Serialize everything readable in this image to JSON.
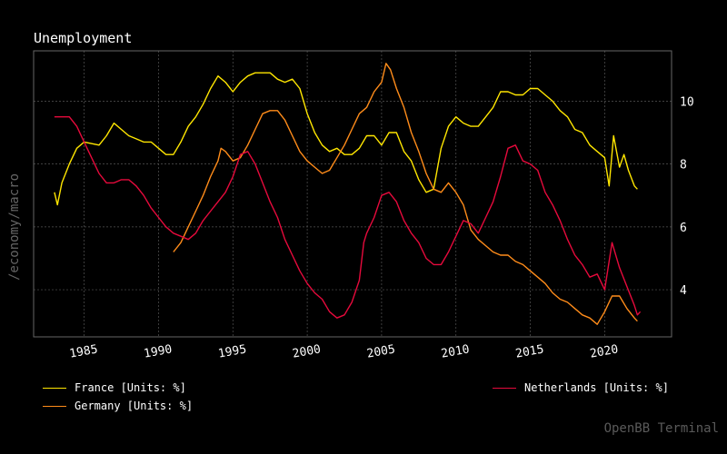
{
  "header": {
    "title": "Unemployment"
  },
  "side_label": "/economy/macro",
  "watermark": "OpenBB Terminal",
  "legend": {
    "france": "France [Units: %]",
    "germany": "Germany [Units: %]",
    "netherlands": "Netherlands [Units: %]"
  },
  "colors": {
    "background": "#000000",
    "grid": "#555555",
    "frame": "#666666",
    "france": "#ffe600",
    "germany": "#ff8c1a",
    "netherlands": "#e60a3c"
  },
  "chart_data": {
    "type": "line",
    "title": "Unemployment",
    "xlabel": "",
    "ylabel": "",
    "xlim": [
      1981.6,
      2024.5
    ],
    "ylim": [
      2.5,
      11.6
    ],
    "x_ticks": [
      1985,
      1990,
      1995,
      2000,
      2005,
      2010,
      2015,
      2020
    ],
    "y_ticks": [
      4,
      6,
      8,
      10
    ],
    "y_axis_side": "right",
    "grid": true,
    "legend_position": "bottom",
    "series": [
      {
        "name": "France [Units: %]",
        "color": "#ffe600",
        "points": [
          [
            1983.0,
            7.1
          ],
          [
            1983.2,
            6.7
          ],
          [
            1983.5,
            7.4
          ],
          [
            1984.0,
            8.0
          ],
          [
            1984.5,
            8.5
          ],
          [
            1985.0,
            8.7
          ],
          [
            1986.0,
            8.6
          ],
          [
            1986.5,
            8.9
          ],
          [
            1987.0,
            9.3
          ],
          [
            1987.5,
            9.1
          ],
          [
            1988.0,
            8.9
          ],
          [
            1988.5,
            8.8
          ],
          [
            1989.0,
            8.7
          ],
          [
            1989.5,
            8.7
          ],
          [
            1990.0,
            8.5
          ],
          [
            1990.5,
            8.3
          ],
          [
            1991.0,
            8.3
          ],
          [
            1991.5,
            8.7
          ],
          [
            1992.0,
            9.2
          ],
          [
            1992.5,
            9.5
          ],
          [
            1993.0,
            9.9
          ],
          [
            1993.5,
            10.4
          ],
          [
            1994.0,
            10.8
          ],
          [
            1994.5,
            10.6
          ],
          [
            1995.0,
            10.3
          ],
          [
            1995.5,
            10.6
          ],
          [
            1996.0,
            10.8
          ],
          [
            1996.5,
            10.9
          ],
          [
            1997.0,
            10.9
          ],
          [
            1997.5,
            10.9
          ],
          [
            1998.0,
            10.7
          ],
          [
            1998.5,
            10.6
          ],
          [
            1999.0,
            10.7
          ],
          [
            1999.5,
            10.4
          ],
          [
            2000.0,
            9.6
          ],
          [
            2000.5,
            9.0
          ],
          [
            2001.0,
            8.6
          ],
          [
            2001.5,
            8.4
          ],
          [
            2002.0,
            8.5
          ],
          [
            2002.5,
            8.3
          ],
          [
            2003.0,
            8.3
          ],
          [
            2003.5,
            8.5
          ],
          [
            2004.0,
            8.9
          ],
          [
            2004.5,
            8.9
          ],
          [
            2005.0,
            8.6
          ],
          [
            2005.5,
            9.0
          ],
          [
            2006.0,
            9.0
          ],
          [
            2006.5,
            8.4
          ],
          [
            2007.0,
            8.1
          ],
          [
            2007.5,
            7.5
          ],
          [
            2008.0,
            7.1
          ],
          [
            2008.5,
            7.2
          ],
          [
            2009.0,
            8.5
          ],
          [
            2009.5,
            9.2
          ],
          [
            2010.0,
            9.5
          ],
          [
            2010.5,
            9.3
          ],
          [
            2011.0,
            9.2
          ],
          [
            2011.5,
            9.2
          ],
          [
            2012.0,
            9.5
          ],
          [
            2012.5,
            9.8
          ],
          [
            2013.0,
            10.3
          ],
          [
            2013.5,
            10.3
          ],
          [
            2014.0,
            10.2
          ],
          [
            2014.5,
            10.2
          ],
          [
            2015.0,
            10.4
          ],
          [
            2015.5,
            10.4
          ],
          [
            2016.0,
            10.2
          ],
          [
            2016.5,
            10.0
          ],
          [
            2017.0,
            9.7
          ],
          [
            2017.5,
            9.5
          ],
          [
            2018.0,
            9.1
          ],
          [
            2018.5,
            9.0
          ],
          [
            2019.0,
            8.6
          ],
          [
            2019.5,
            8.4
          ],
          [
            2020.0,
            8.2
          ],
          [
            2020.3,
            7.3
          ],
          [
            2020.6,
            8.9
          ],
          [
            2021.0,
            7.9
          ],
          [
            2021.3,
            8.3
          ],
          [
            2021.6,
            7.8
          ],
          [
            2022.0,
            7.3
          ],
          [
            2022.2,
            7.2
          ]
        ]
      },
      {
        "name": "Germany [Units: %]",
        "color": "#ff8c1a",
        "points": [
          [
            1991.0,
            5.2
          ],
          [
            1991.5,
            5.5
          ],
          [
            1992.0,
            6.0
          ],
          [
            1992.5,
            6.5
          ],
          [
            1993.0,
            7.0
          ],
          [
            1993.5,
            7.6
          ],
          [
            1994.0,
            8.1
          ],
          [
            1994.2,
            8.5
          ],
          [
            1994.5,
            8.4
          ],
          [
            1995.0,
            8.1
          ],
          [
            1995.5,
            8.2
          ],
          [
            1996.0,
            8.6
          ],
          [
            1996.5,
            9.1
          ],
          [
            1997.0,
            9.6
          ],
          [
            1997.5,
            9.7
          ],
          [
            1998.0,
            9.7
          ],
          [
            1998.5,
            9.4
          ],
          [
            1999.0,
            8.9
          ],
          [
            1999.5,
            8.4
          ],
          [
            2000.0,
            8.1
          ],
          [
            2000.5,
            7.9
          ],
          [
            2001.0,
            7.7
          ],
          [
            2001.5,
            7.8
          ],
          [
            2002.0,
            8.2
          ],
          [
            2002.5,
            8.6
          ],
          [
            2003.0,
            9.1
          ],
          [
            2003.5,
            9.6
          ],
          [
            2004.0,
            9.8
          ],
          [
            2004.5,
            10.3
          ],
          [
            2005.0,
            10.6
          ],
          [
            2005.3,
            11.2
          ],
          [
            2005.6,
            11.0
          ],
          [
            2006.0,
            10.4
          ],
          [
            2006.5,
            9.8
          ],
          [
            2007.0,
            9.0
          ],
          [
            2007.5,
            8.4
          ],
          [
            2008.0,
            7.7
          ],
          [
            2008.5,
            7.2
          ],
          [
            2009.0,
            7.1
          ],
          [
            2009.5,
            7.4
          ],
          [
            2010.0,
            7.1
          ],
          [
            2010.5,
            6.7
          ],
          [
            2011.0,
            5.9
          ],
          [
            2011.5,
            5.6
          ],
          [
            2012.0,
            5.4
          ],
          [
            2012.5,
            5.2
          ],
          [
            2013.0,
            5.1
          ],
          [
            2013.5,
            5.1
          ],
          [
            2014.0,
            4.9
          ],
          [
            2014.5,
            4.8
          ],
          [
            2015.0,
            4.6
          ],
          [
            2015.5,
            4.4
          ],
          [
            2016.0,
            4.2
          ],
          [
            2016.5,
            3.9
          ],
          [
            2017.0,
            3.7
          ],
          [
            2017.5,
            3.6
          ],
          [
            2018.0,
            3.4
          ],
          [
            2018.5,
            3.2
          ],
          [
            2019.0,
            3.1
          ],
          [
            2019.5,
            2.9
          ],
          [
            2020.0,
            3.3
          ],
          [
            2020.5,
            3.8
          ],
          [
            2021.0,
            3.8
          ],
          [
            2021.5,
            3.4
          ],
          [
            2022.0,
            3.1
          ],
          [
            2022.2,
            3.0
          ]
        ]
      },
      {
        "name": "Netherlands [Units: %]",
        "color": "#e60a3c",
        "points": [
          [
            1983.0,
            9.5
          ],
          [
            1983.5,
            9.5
          ],
          [
            1984.0,
            9.5
          ],
          [
            1984.5,
            9.2
          ],
          [
            1985.0,
            8.7
          ],
          [
            1985.5,
            8.2
          ],
          [
            1986.0,
            7.7
          ],
          [
            1986.5,
            7.4
          ],
          [
            1987.0,
            7.4
          ],
          [
            1987.5,
            7.5
          ],
          [
            1988.0,
            7.5
          ],
          [
            1988.5,
            7.3
          ],
          [
            1989.0,
            7.0
          ],
          [
            1989.5,
            6.6
          ],
          [
            1990.0,
            6.3
          ],
          [
            1990.5,
            6.0
          ],
          [
            1991.0,
            5.8
          ],
          [
            1991.5,
            5.7
          ],
          [
            1992.0,
            5.6
          ],
          [
            1992.5,
            5.8
          ],
          [
            1993.0,
            6.2
          ],
          [
            1993.5,
            6.5
          ],
          [
            1994.0,
            6.8
          ],
          [
            1994.5,
            7.1
          ],
          [
            1995.0,
            7.6
          ],
          [
            1995.5,
            8.3
          ],
          [
            1996.0,
            8.4
          ],
          [
            1996.5,
            8.0
          ],
          [
            1997.0,
            7.4
          ],
          [
            1997.5,
            6.8
          ],
          [
            1998.0,
            6.3
          ],
          [
            1998.5,
            5.6
          ],
          [
            1999.0,
            5.1
          ],
          [
            1999.5,
            4.6
          ],
          [
            2000.0,
            4.2
          ],
          [
            2000.5,
            3.9
          ],
          [
            2001.0,
            3.7
          ],
          [
            2001.5,
            3.3
          ],
          [
            2002.0,
            3.1
          ],
          [
            2002.5,
            3.2
          ],
          [
            2003.0,
            3.6
          ],
          [
            2003.5,
            4.3
          ],
          [
            2003.8,
            5.5
          ],
          [
            2004.0,
            5.8
          ],
          [
            2004.5,
            6.3
          ],
          [
            2005.0,
            7.0
          ],
          [
            2005.5,
            7.1
          ],
          [
            2006.0,
            6.8
          ],
          [
            2006.5,
            6.2
          ],
          [
            2007.0,
            5.8
          ],
          [
            2007.5,
            5.5
          ],
          [
            2008.0,
            5.0
          ],
          [
            2008.5,
            4.8
          ],
          [
            2009.0,
            4.8
          ],
          [
            2009.5,
            5.2
          ],
          [
            2010.0,
            5.7
          ],
          [
            2010.5,
            6.2
          ],
          [
            2011.0,
            6.1
          ],
          [
            2011.5,
            5.8
          ],
          [
            2012.0,
            6.3
          ],
          [
            2012.5,
            6.8
          ],
          [
            2013.0,
            7.6
          ],
          [
            2013.5,
            8.5
          ],
          [
            2014.0,
            8.6
          ],
          [
            2014.5,
            8.1
          ],
          [
            2015.0,
            8.0
          ],
          [
            2015.5,
            7.8
          ],
          [
            2016.0,
            7.1
          ],
          [
            2016.5,
            6.7
          ],
          [
            2017.0,
            6.2
          ],
          [
            2017.5,
            5.6
          ],
          [
            2018.0,
            5.1
          ],
          [
            2018.5,
            4.8
          ],
          [
            2019.0,
            4.4
          ],
          [
            2019.5,
            4.5
          ],
          [
            2020.0,
            4.0
          ],
          [
            2020.5,
            5.5
          ],
          [
            2021.0,
            4.7
          ],
          [
            2021.5,
            4.1
          ],
          [
            2022.0,
            3.5
          ],
          [
            2022.2,
            3.2
          ],
          [
            2022.4,
            3.3
          ]
        ]
      }
    ]
  }
}
